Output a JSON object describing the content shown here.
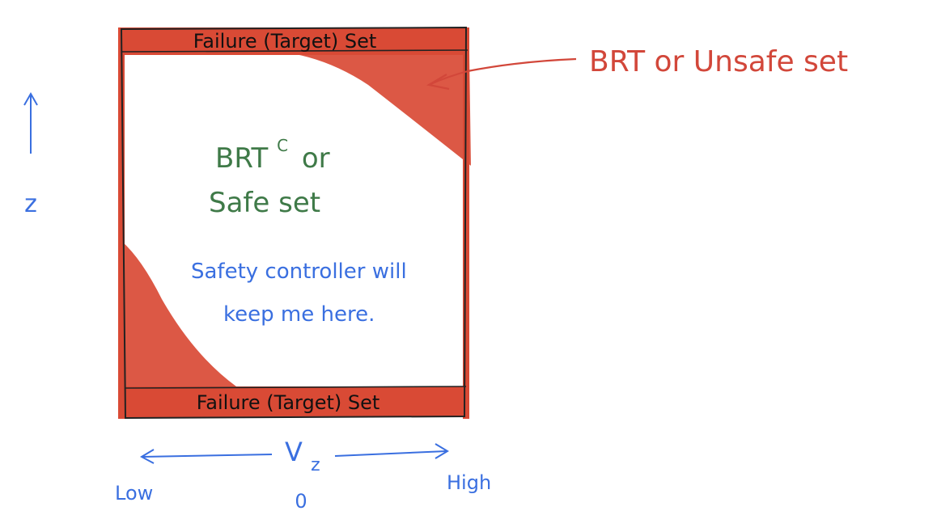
{
  "diagram": {
    "top_band_label": "Failure (Target) Set",
    "bottom_band_label": "Failure (Target) Set",
    "unsafe_label": "BRT or Unsafe set",
    "safe_label_line1": "BRT",
    "safe_label_superscript": "C",
    "safe_label_or": "or",
    "safe_label_line2": "Safe set",
    "controller_line1": "Safety controller will",
    "controller_line2": "keep me here.",
    "y_axis_label": "z",
    "x_axis_label": "V",
    "x_axis_subscript": "z",
    "x_low_label": "Low",
    "x_high_label": "High",
    "x_zero_label": "0"
  },
  "colors": {
    "red": "#d94a35",
    "red_label": "#d2473a",
    "green": "#3f7a48",
    "blue": "#3a6fe0",
    "outline": "#222222"
  }
}
